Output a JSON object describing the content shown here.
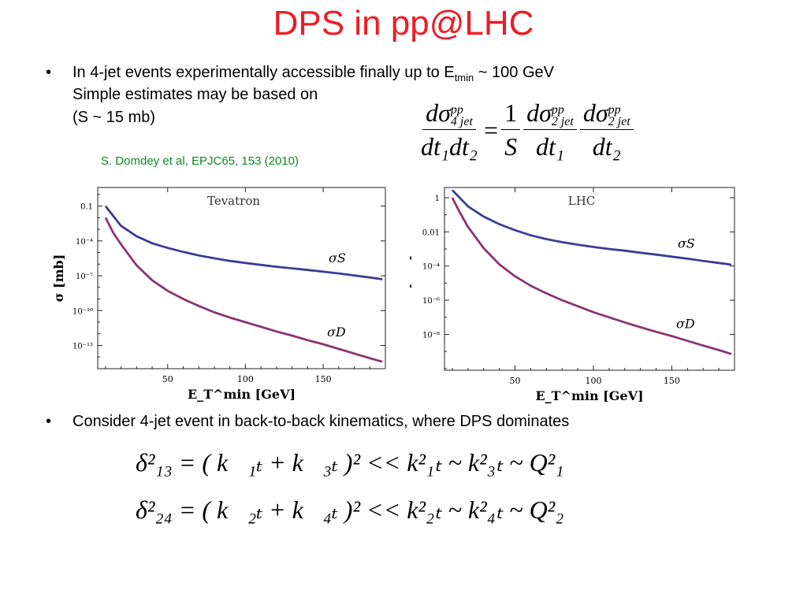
{
  "title": "DPS in pp@LHC",
  "bullets": {
    "b1_line1": "In 4-jet events experimentally accessible finally up to E",
    "b1_sub": "tmin",
    "b1_tail": " ~ 100 GeV",
    "b1_line2": "Simple estimates may be based on",
    "b1_line3": "(S ~ 15 mb)",
    "reference": "S. Domdey et al, EPJC65, 153 (2010)",
    "b2": "Consider 4-jet event in back-to-back kinematics, where DPS dominates",
    "bullet_symbol": "•"
  },
  "formula_main": {
    "num_left": "dσ",
    "num_left_sup": "pp",
    "num_left_sub": "4 jet",
    "den_left": "dt₁dt₂",
    "equals": "=",
    "one": "1",
    "S": "S",
    "num_mid": "dσ",
    "num_mid_sup": "pp",
    "num_mid_sub": "2 jet",
    "den_mid": "dt₁",
    "num_right": "dσ",
    "num_right_sup": "pp",
    "num_right_sub": "2 jet",
    "den_right": "dt₂"
  },
  "formula_13": "δ²₁₃ = ( k⃗₁ₜ + k⃗₃ₜ )² << k²₁ₜ ~ k²₃ₜ ~ Q²₁",
  "formula_24": "δ²₂₄ = ( k⃗₂ₜ + k⃗₄ₜ )² << k²₂ₜ ~ k²₄ₜ ~ Q²₂",
  "colors": {
    "title": "#ee1c25",
    "reference": "#0b8a20",
    "sigma_s": "#3b3d96",
    "sigma_d": "#8a3572"
  },
  "chart_data": [
    {
      "type": "line",
      "panel_label": "Tevatron",
      "xlabel": "E_T^min [GeV]",
      "ylabel": "σ [mb]",
      "xlim": [
        5,
        190
      ],
      "ylim_log10": [
        -15,
        0.6
      ],
      "y_scale": "log",
      "x_ticks": [
        50,
        100,
        150
      ],
      "y_tick_labels": [
        "0.1",
        "10⁻⁴",
        "10⁻⁷",
        "10⁻¹⁰",
        "10⁻¹³"
      ],
      "y_tick_values_log10": [
        -1,
        -4,
        -7,
        -10,
        -13
      ],
      "grid": false,
      "series": [
        {
          "name": "σS",
          "x": [
            10,
            20,
            30,
            40,
            50,
            60,
            70,
            80,
            90,
            100,
            110,
            120,
            130,
            140,
            150,
            160,
            170,
            180,
            188
          ],
          "log10_y": [
            -1.0,
            -2.7,
            -3.6,
            -4.2,
            -4.6,
            -4.95,
            -5.25,
            -5.5,
            -5.72,
            -5.9,
            -6.07,
            -6.22,
            -6.36,
            -6.5,
            -6.65,
            -6.8,
            -6.97,
            -7.15,
            -7.3
          ]
        },
        {
          "name": "σD",
          "x": [
            10,
            15,
            20,
            30,
            40,
            50,
            60,
            70,
            80,
            90,
            100,
            110,
            120,
            130,
            140,
            150,
            160,
            170,
            180,
            188
          ],
          "log10_y": [
            -2.0,
            -3.3,
            -4.3,
            -6.1,
            -7.4,
            -8.3,
            -9.0,
            -9.6,
            -10.15,
            -10.6,
            -11.0,
            -11.4,
            -11.8,
            -12.15,
            -12.55,
            -12.9,
            -13.3,
            -13.7,
            -14.1,
            -14.4
          ]
        }
      ]
    },
    {
      "type": "line",
      "panel_label": "LHC",
      "xlabel": "E_T^min [GeV]",
      "ylabel": "σ [mb]",
      "xlim": [
        5,
        190
      ],
      "ylim_log10": [
        -10.1,
        0.6
      ],
      "y_scale": "log",
      "x_ticks": [
        50,
        100,
        150
      ],
      "y_tick_labels": [
        "1",
        "0.01",
        "10⁻⁴",
        "10⁻⁶",
        "10⁻⁸"
      ],
      "y_tick_values_log10": [
        0,
        -2,
        -4,
        -6,
        -8
      ],
      "grid": false,
      "series": [
        {
          "name": "σS",
          "x": [
            10,
            20,
            30,
            40,
            50,
            60,
            70,
            80,
            90,
            100,
            110,
            120,
            130,
            140,
            150,
            160,
            170,
            180,
            188
          ],
          "log10_y": [
            0.45,
            -0.5,
            -1.1,
            -1.55,
            -1.9,
            -2.2,
            -2.42,
            -2.6,
            -2.75,
            -2.88,
            -3.0,
            -3.1,
            -3.22,
            -3.33,
            -3.45,
            -3.57,
            -3.7,
            -3.82,
            -3.92
          ]
        },
        {
          "name": "σD",
          "x": [
            10,
            15,
            20,
            30,
            40,
            50,
            60,
            70,
            80,
            90,
            100,
            110,
            120,
            130,
            140,
            150,
            160,
            170,
            180,
            188
          ],
          "log10_y": [
            0.0,
            -0.9,
            -1.7,
            -2.95,
            -3.9,
            -4.6,
            -5.15,
            -5.6,
            -6.0,
            -6.35,
            -6.7,
            -7.0,
            -7.3,
            -7.58,
            -7.85,
            -8.1,
            -8.38,
            -8.65,
            -8.92,
            -9.15
          ]
        }
      ]
    }
  ]
}
